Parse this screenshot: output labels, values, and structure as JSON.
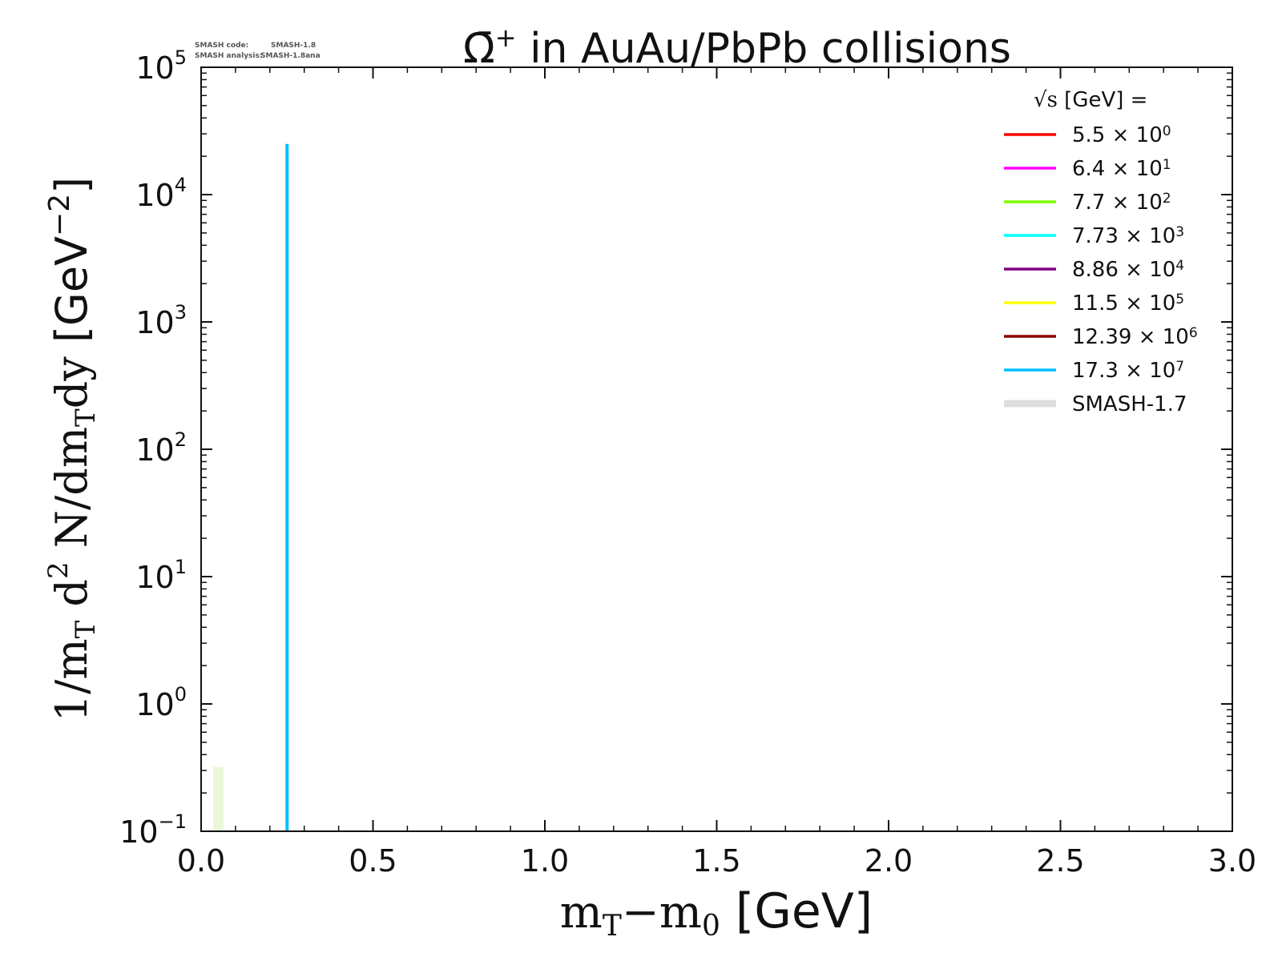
{
  "meta": {
    "code_label": "SMASH code:",
    "code_value": "SMASH-1.8",
    "analysis_label": "SMASH analysis:",
    "analysis_value": "SMASH-1.8ana"
  },
  "chart_data": {
    "type": "line",
    "title_symbol": "Ω̄",
    "title_sup": "+",
    "title_rest": " in AuAu/PbPb collisions",
    "xlabel": {
      "m1": "m",
      "sub1": "T",
      "dash": "−",
      "m2": "m",
      "sub2": "0",
      "units": " [GeV]"
    },
    "ylabel": {
      "p1": "1/m",
      "s1": "T",
      "p2": " d",
      "sup2": "2",
      "p3": " N/dm",
      "s3": "T",
      "p4": "dy",
      "units": " [GeV",
      "uexp": "−2",
      "uclose": "]"
    },
    "xlim": [
      0.0,
      3.0
    ],
    "ylim": [
      0.1,
      100000
    ],
    "yscale": "log",
    "xticks": [
      {
        "value": 0.0,
        "label": "0.0"
      },
      {
        "value": 0.5,
        "label": "0.5"
      },
      {
        "value": 1.0,
        "label": "1.0"
      },
      {
        "value": 1.5,
        "label": "1.5"
      },
      {
        "value": 2.0,
        "label": "2.0"
      },
      {
        "value": 2.5,
        "label": "2.5"
      },
      {
        "value": 3.0,
        "label": "3.0"
      }
    ],
    "yticks": [
      {
        "value": 0.1,
        "base": "10",
        "exp": "−1"
      },
      {
        "value": 1,
        "base": "10",
        "exp": "0"
      },
      {
        "value": 10,
        "base": "10",
        "exp": "1"
      },
      {
        "value": 100,
        "base": "10",
        "exp": "2"
      },
      {
        "value": 1000,
        "base": "10",
        "exp": "3"
      },
      {
        "value": 10000,
        "base": "10",
        "exp": "4"
      },
      {
        "value": 100000,
        "base": "10",
        "exp": "5"
      }
    ],
    "grid": false,
    "legend_position": "top-right",
    "legend_title": {
      "sqrt": "√s",
      "rest": " [GeV] ="
    },
    "series": [
      {
        "name": "5.5",
        "mult": " × 10",
        "exp": "0",
        "color": "#ff0000",
        "x": [],
        "y": []
      },
      {
        "name": "6.4",
        "mult": " × 10",
        "exp": "1",
        "color": "#ff00ff",
        "x": [],
        "y": []
      },
      {
        "name": "7.7",
        "mult": " × 10",
        "exp": "2",
        "color": "#7cfc00",
        "x": [],
        "y": []
      },
      {
        "name": "7.73",
        "mult": " × 10",
        "exp": "3",
        "color": "#00ffff",
        "x": [],
        "y": []
      },
      {
        "name": "8.86",
        "mult": " × 10",
        "exp": "4",
        "color": "#800080",
        "x": [],
        "y": []
      },
      {
        "name": "11.5",
        "mult": " × 10",
        "exp": "5",
        "color": "#ffff00",
        "x": [],
        "y": []
      },
      {
        "name": "12.39",
        "mult": " × 10",
        "exp": "6",
        "color": "#8b0000",
        "x": [],
        "y": []
      },
      {
        "name": "17.3",
        "mult": " × 10",
        "exp": "7",
        "color": "#00bfff",
        "x": [
          0.25,
          0.25,
          0.25,
          0.25,
          0.25
        ],
        "y": [
          0.1,
          10,
          1000,
          10000,
          25000
        ]
      }
    ],
    "reference": {
      "name": "SMASH-1.7",
      "color": "#dddddd",
      "bars": [
        {
          "x0": 0.035,
          "x1": 0.065,
          "y": 0.32,
          "color": "#eaf8d8"
        }
      ]
    }
  }
}
